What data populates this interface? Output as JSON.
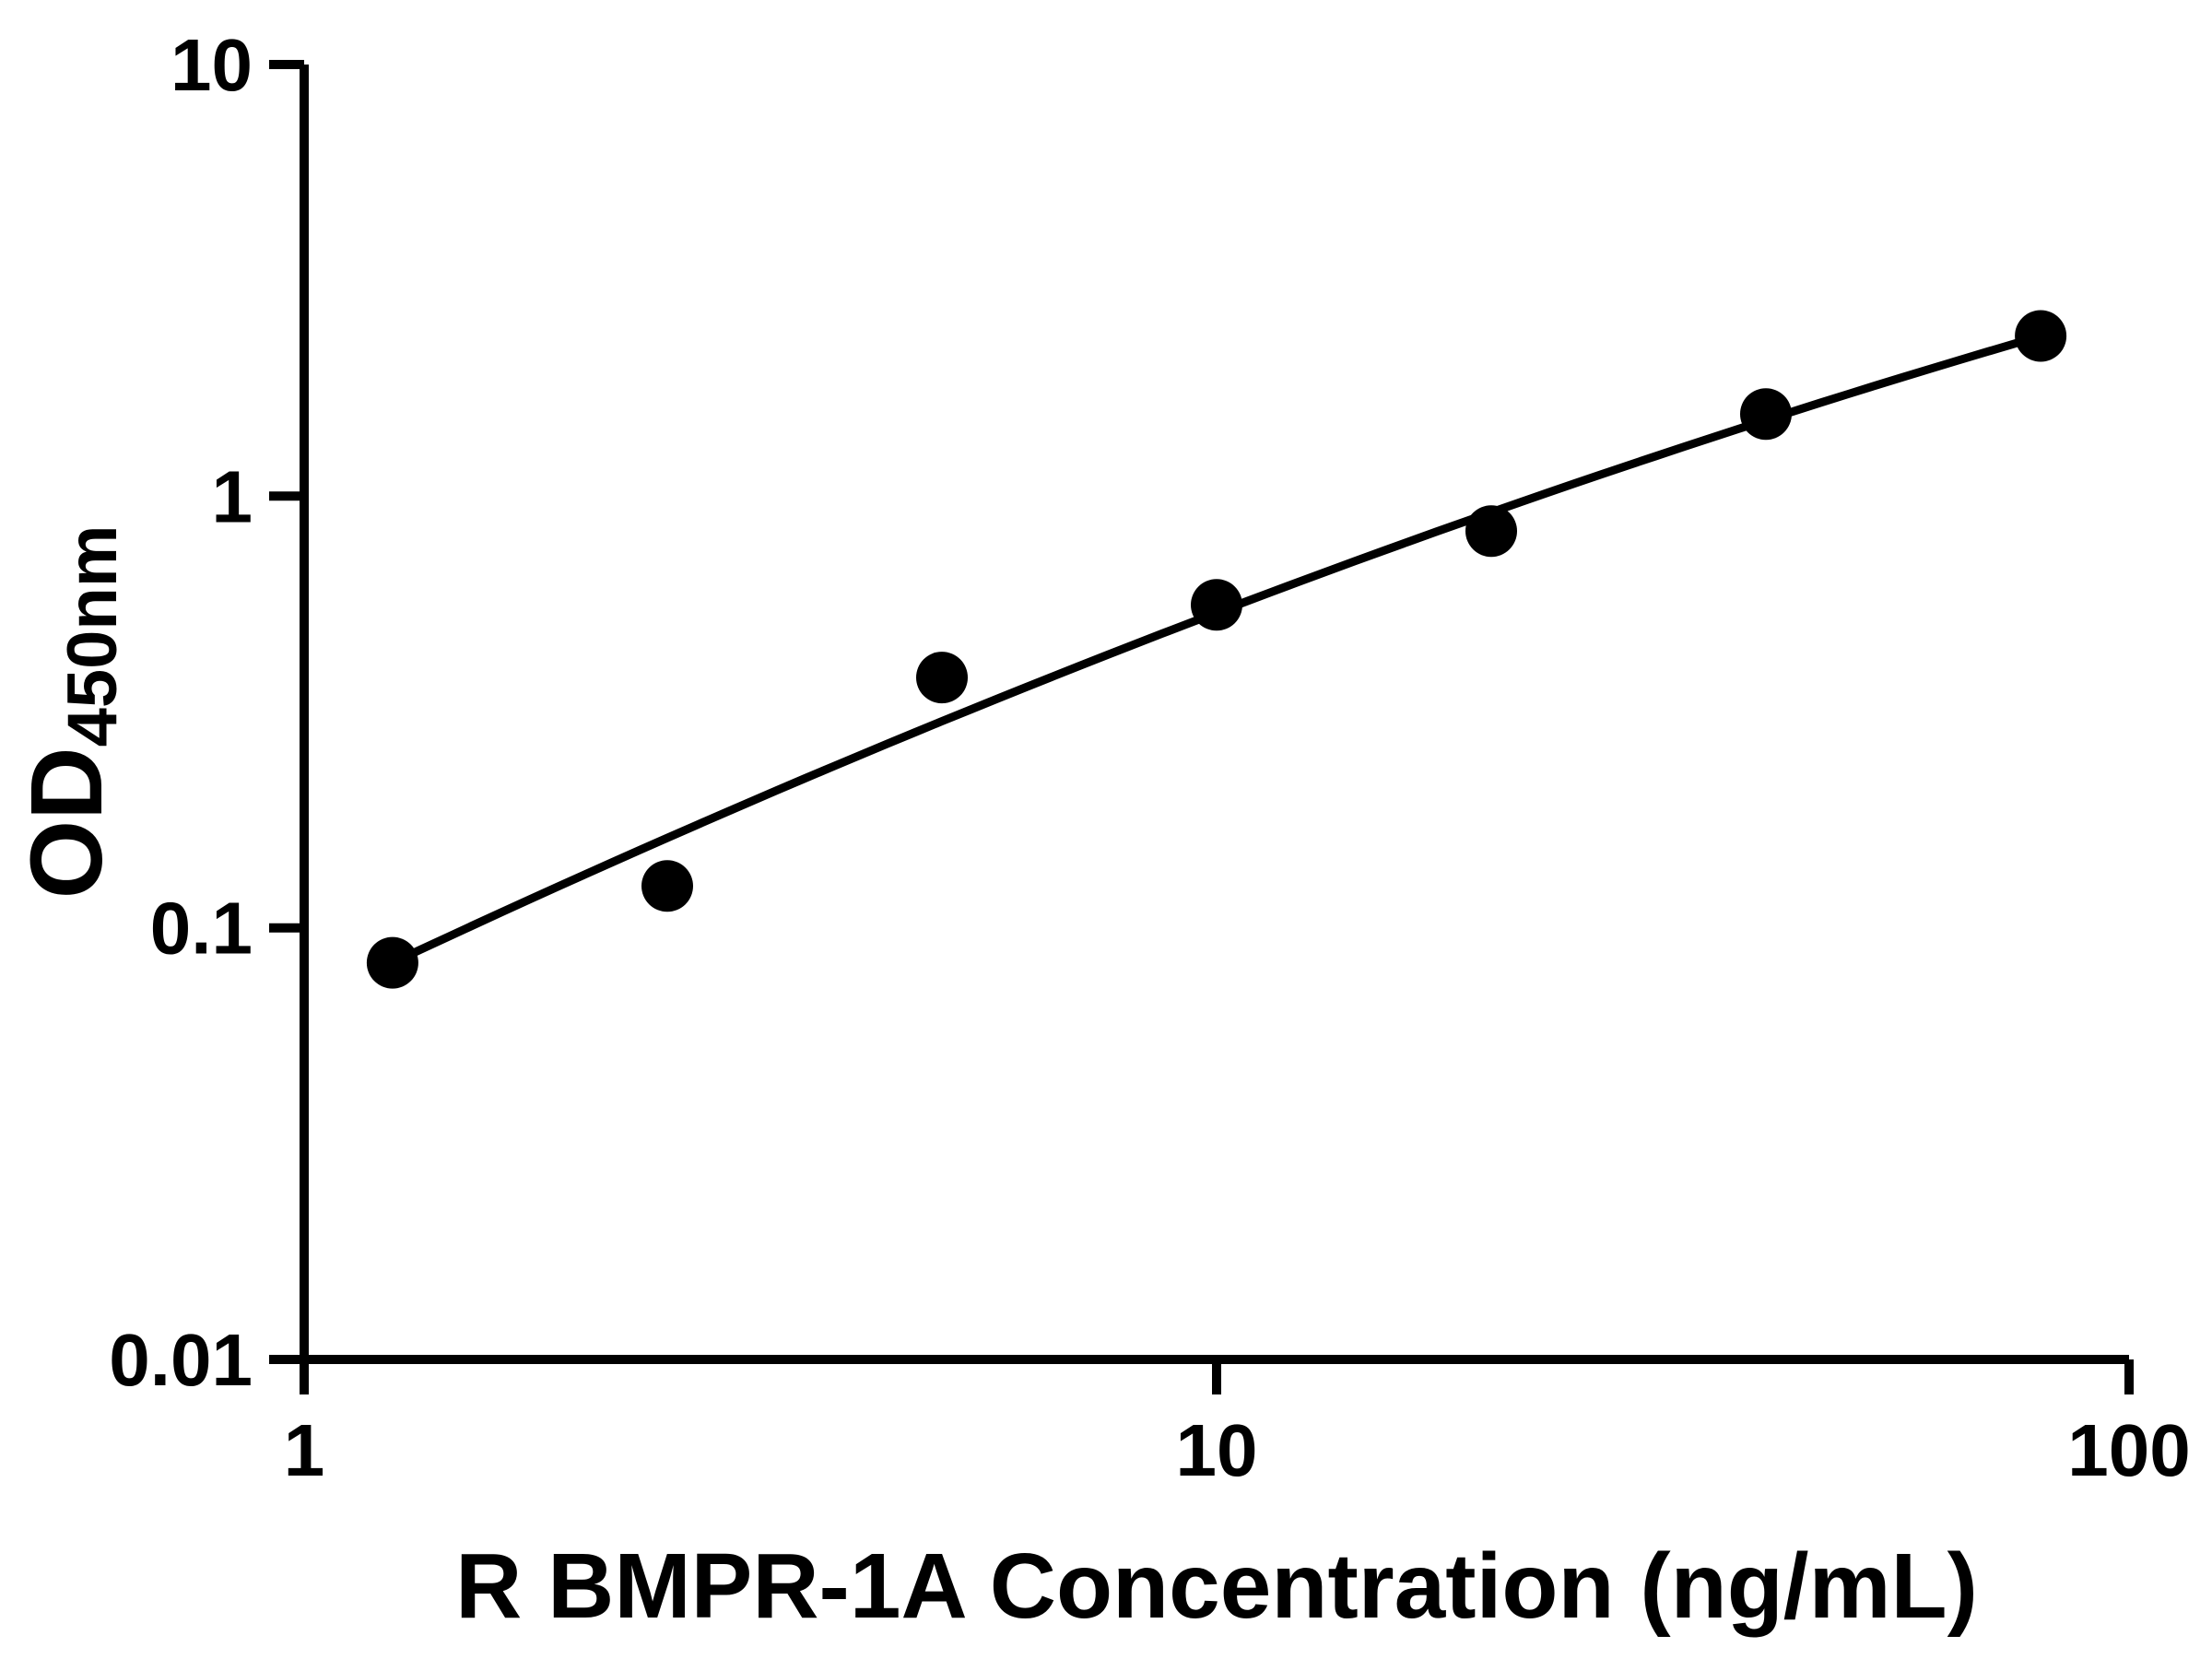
{
  "chart_data": {
    "type": "scatter",
    "title": "",
    "xlabel": "R BMPR-1A Concentration (ng/mL)",
    "ylabel_main": "OD",
    "ylabel_sub": "450nm",
    "x_scale": "log",
    "y_scale": "log",
    "xlim": [
      1,
      100
    ],
    "ylim": [
      0.01,
      10
    ],
    "grid": false,
    "legend": null,
    "x_ticks": [
      {
        "value": 1,
        "label": "1"
      },
      {
        "value": 10,
        "label": "10"
      },
      {
        "value": 100,
        "label": "100"
      }
    ],
    "y_ticks": [
      {
        "value": 0.01,
        "label": "0.01"
      },
      {
        "value": 0.1,
        "label": "0.1"
      },
      {
        "value": 1,
        "label": "1"
      },
      {
        "value": 10,
        "label": "10"
      }
    ],
    "points": {
      "x": [
        1.25,
        2.5,
        5,
        10,
        20,
        40,
        80
      ],
      "y": [
        0.083,
        0.125,
        0.38,
        0.56,
        0.83,
        1.55,
        2.35
      ]
    },
    "fit_curve": {
      "model": "quadratic_in_log10",
      "coefficients": [
        -1.178,
        1.0121,
        -0.1041
      ],
      "x_range": [
        1.25,
        80
      ]
    },
    "colors": {
      "marker": "#000000",
      "line": "#000000",
      "axis": "#000000",
      "background": "#ffffff"
    }
  }
}
